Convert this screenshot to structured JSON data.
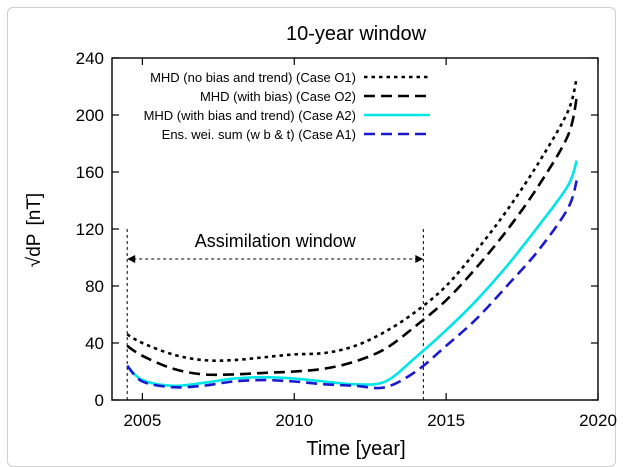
{
  "chart_data": {
    "type": "line",
    "title": "10-year window",
    "xlabel": "Time [year]",
    "ylabel_prefix": "√dP",
    "ylabel_unit": "[nT]",
    "xlim": [
      2004,
      2020
    ],
    "ylim": [
      0,
      240
    ],
    "x_ticks": [
      2005,
      2010,
      2015,
      2020
    ],
    "y_ticks": [
      0,
      40,
      80,
      120,
      160,
      200,
      240
    ],
    "legend_position": "top-left",
    "annotation": {
      "text": "Assimilation window",
      "x_start": 2004.5,
      "x_end": 2014.25
    },
    "series": [
      {
        "name": "MHD (no bias and trend) (Case O1)",
        "color": "#000000",
        "style": "dotted",
        "points": [
          [
            2004.5,
            46
          ],
          [
            2005,
            40
          ],
          [
            2006,
            32
          ],
          [
            2007,
            28
          ],
          [
            2008,
            28
          ],
          [
            2009,
            30
          ],
          [
            2010,
            32
          ],
          [
            2011,
            33
          ],
          [
            2012,
            38
          ],
          [
            2013,
            48
          ],
          [
            2014,
            62
          ],
          [
            2015,
            80
          ],
          [
            2016,
            105
          ],
          [
            2017,
            133
          ],
          [
            2018,
            165
          ],
          [
            2019,
            202
          ],
          [
            2019.3,
            226
          ]
        ]
      },
      {
        "name": "MHD (with bias) (Case O2)",
        "color": "#000000",
        "style": "dashed",
        "points": [
          [
            2004.5,
            38
          ],
          [
            2005,
            31
          ],
          [
            2006,
            22
          ],
          [
            2007,
            18
          ],
          [
            2008,
            18
          ],
          [
            2009,
            19
          ],
          [
            2010,
            20
          ],
          [
            2011,
            22
          ],
          [
            2012,
            27
          ],
          [
            2013,
            36
          ],
          [
            2014,
            52
          ],
          [
            2015,
            70
          ],
          [
            2016,
            93
          ],
          [
            2017,
            119
          ],
          [
            2018,
            149
          ],
          [
            2019,
            185
          ],
          [
            2019.3,
            212
          ]
        ]
      },
      {
        "name": "MHD (with bias and trend) (Case A2)",
        "color": "#00e5e5",
        "style": "solid",
        "points": [
          [
            2004.5,
            24
          ],
          [
            2005,
            14
          ],
          [
            2006,
            10
          ],
          [
            2007,
            12
          ],
          [
            2008,
            15
          ],
          [
            2009,
            16
          ],
          [
            2010,
            15
          ],
          [
            2011,
            13
          ],
          [
            2012,
            11
          ],
          [
            2013,
            13
          ],
          [
            2014,
            30
          ],
          [
            2015,
            49
          ],
          [
            2016,
            70
          ],
          [
            2017,
            94
          ],
          [
            2018,
            121
          ],
          [
            2019,
            150
          ],
          [
            2019.3,
            168
          ]
        ]
      },
      {
        "name": "Ens. wei. sum (w b & t) (Case A1)",
        "color": "#1a1acc",
        "style": "dashed",
        "points": [
          [
            2004.5,
            24
          ],
          [
            2005,
            13
          ],
          [
            2006,
            9
          ],
          [
            2007,
            10
          ],
          [
            2008,
            13
          ],
          [
            2009,
            14
          ],
          [
            2010,
            13
          ],
          [
            2011,
            11
          ],
          [
            2012,
            10
          ],
          [
            2013,
            9
          ],
          [
            2014,
            20
          ],
          [
            2015,
            38
          ],
          [
            2016,
            57
          ],
          [
            2017,
            80
          ],
          [
            2018,
            104
          ],
          [
            2019,
            134
          ],
          [
            2019.3,
            154
          ]
        ]
      }
    ]
  }
}
